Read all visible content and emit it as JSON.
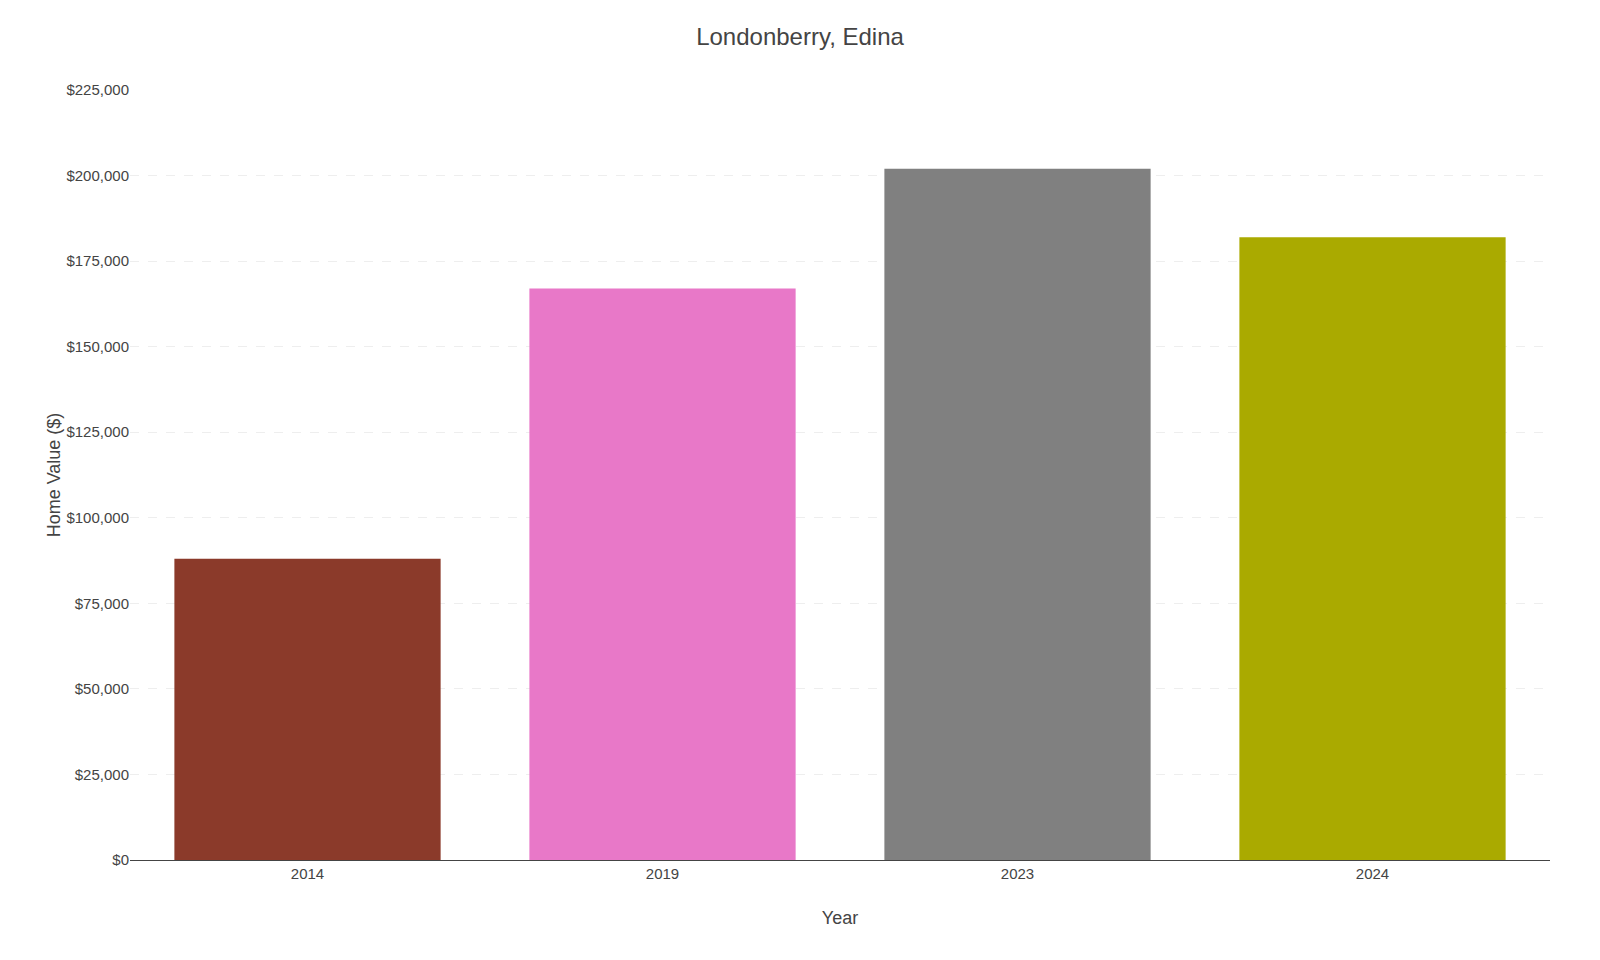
{
  "chart_data": {
    "type": "bar",
    "title": "Londonberry, Edina",
    "categories": [
      "2014",
      "2019",
      "2023",
      "2024"
    ],
    "values": [
      88000,
      167000,
      202000,
      182000
    ],
    "colors": [
      "#8B3A2A",
      "#E878C8",
      "#808080",
      "#AAAA00"
    ],
    "xlabel": "Year",
    "ylabel": "Home Value ($)",
    "ylim": [
      0,
      225000
    ],
    "yticks": [
      {
        "value": 0,
        "label": "$0"
      },
      {
        "value": 25000,
        "label": "$25,000"
      },
      {
        "value": 50000,
        "label": "$50,000"
      },
      {
        "value": 75000,
        "label": "$75,000"
      },
      {
        "value": 100000,
        "label": "$100,000"
      },
      {
        "value": 125000,
        "label": "$125,000"
      },
      {
        "value": 150000,
        "label": "$150,000"
      },
      {
        "value": 175000,
        "label": "$175,000"
      },
      {
        "value": 200000,
        "label": "$200,000"
      },
      {
        "value": 225000,
        "label": "$225,000"
      }
    ],
    "grid": true
  }
}
